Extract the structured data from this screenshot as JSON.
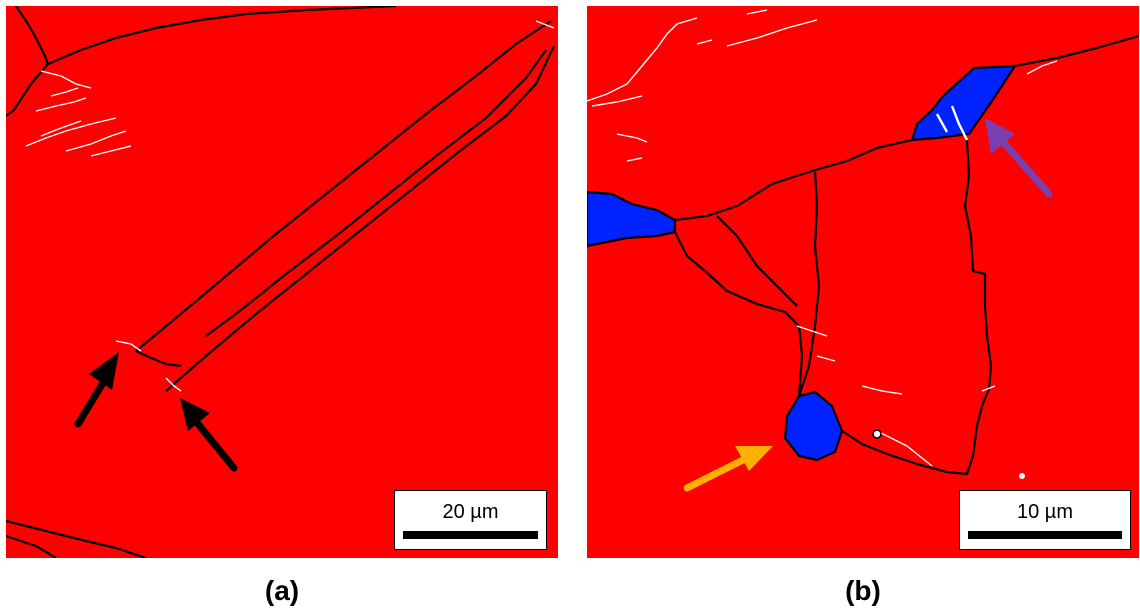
{
  "colors": {
    "matrix": "#ff0000",
    "second_phase": "#0022ff",
    "grain_boundary": "#000000",
    "minor_boundary": "#ffffff",
    "arrow_black": "#000000",
    "arrow_purple": "#7b3fb0",
    "arrow_yellow": "#ffb000"
  },
  "panels": [
    {
      "caption": "(a)",
      "scale_bar": "20 µm",
      "arrows": [
        "black",
        "black"
      ]
    },
    {
      "caption": "(b)",
      "scale_bar": "10 µm",
      "arrows": [
        "purple",
        "yellow"
      ]
    }
  ]
}
